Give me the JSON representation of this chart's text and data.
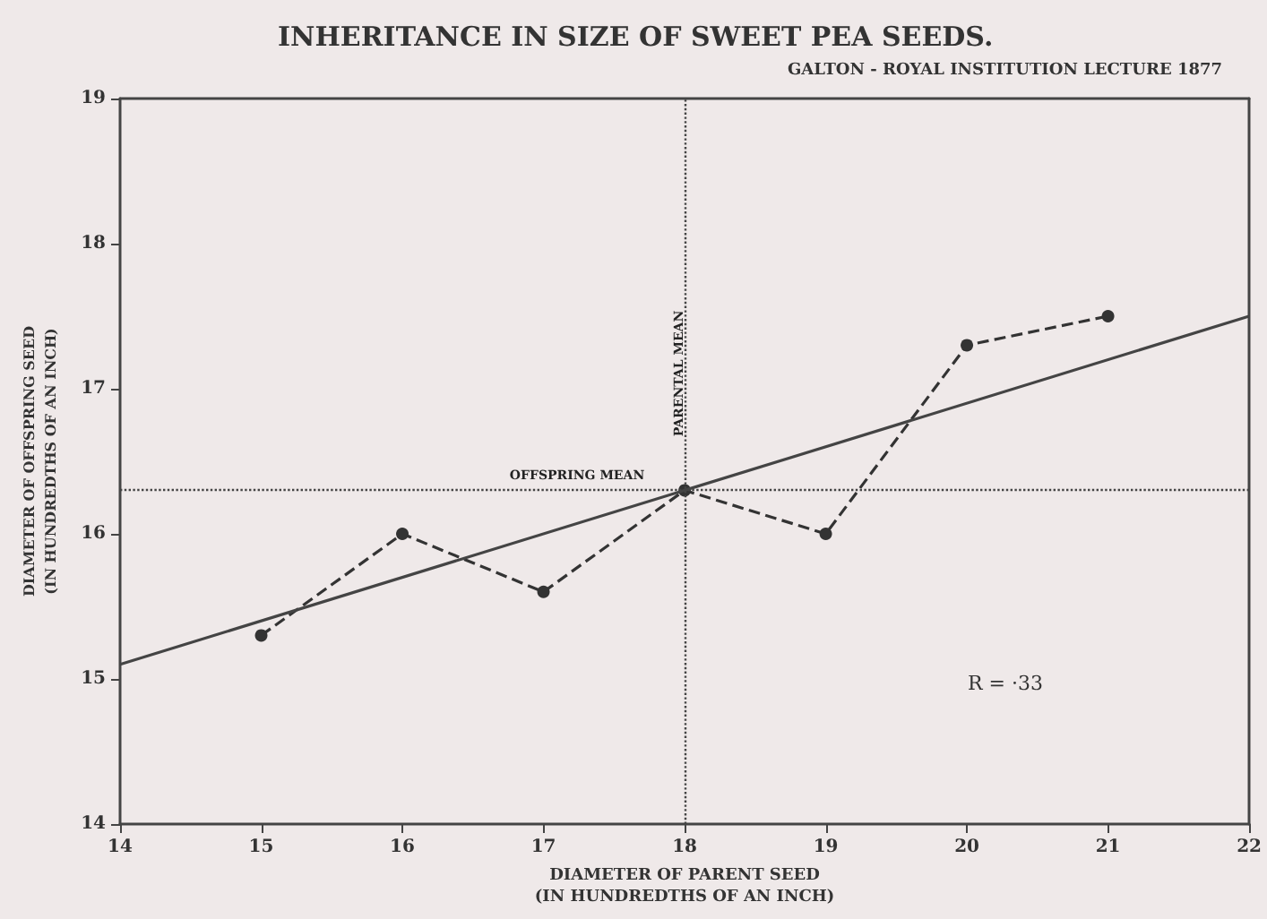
{
  "chart_data": {
    "type": "line",
    "title": "INHERITANCE IN SIZE OF SWEET PEA SEEDS.",
    "subtitle": "GALTON - ROYAL INSTITUTION LECTURE 1877",
    "xlabel": "DIAMETER OF PARENT SEED\n(IN HUNDREDTHS OF AN INCH)",
    "ylabel": "DIAMETER OF OFFSPRING SEED\n(IN HUNDREDTHS OF AN INCH)",
    "x": [
      15,
      16,
      17,
      18,
      19,
      20,
      21
    ],
    "series": [
      {
        "color": "#333333",
        "values": [
          15.3,
          16.0,
          15.6,
          16.3,
          16.0,
          17.3,
          17.5
        ],
        "line_style": "dashed",
        "marker": "circle"
      },
      {
        "type": "line",
        "color": "#444444",
        "x": [
          14,
          22
        ],
        "values": [
          15.1,
          17.5
        ],
        "line_style": "solid",
        "marker": "none"
      }
    ],
    "xlim": [
      14,
      22
    ],
    "xticks": [
      14,
      15,
      16,
      17,
      18,
      19,
      20,
      21,
      22
    ],
    "ylim": [
      14,
      19
    ],
    "yticks": [
      14,
      15,
      16,
      17,
      18,
      19
    ],
    "ref_lines": [
      {
        "axis": "y",
        "value": 16.3,
        "label": "OFFSPRING MEAN",
        "line_style": "dotted"
      },
      {
        "axis": "x",
        "value": 18,
        "label": "PARENTAL MEAN",
        "line_style": "dotted"
      }
    ],
    "annotations": [
      "R = ·33"
    ],
    "grid": false
  }
}
